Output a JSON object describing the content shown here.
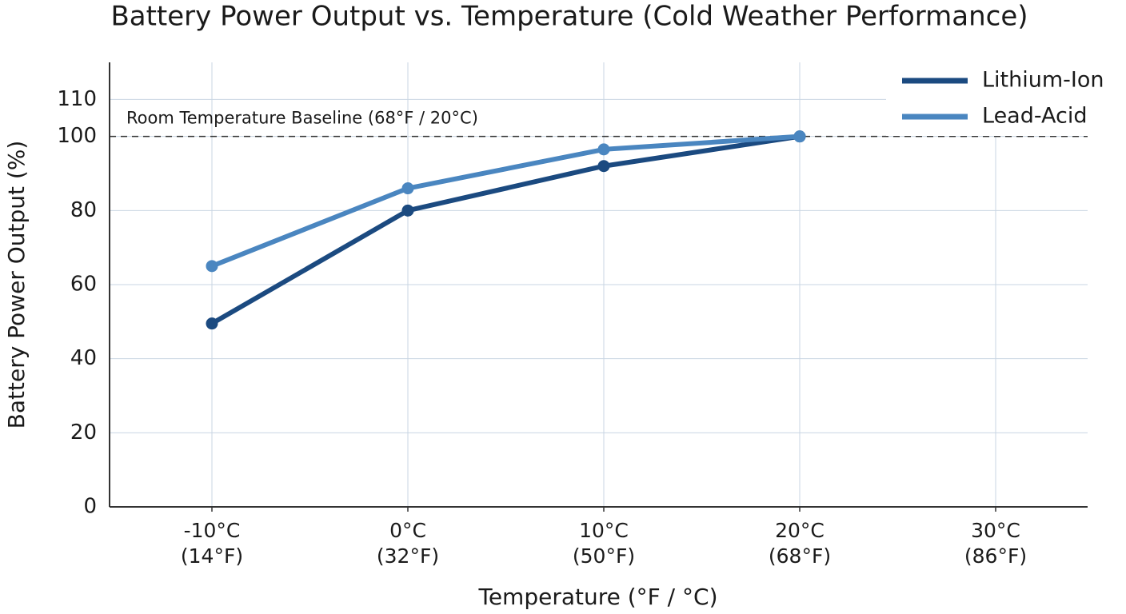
{
  "chart_data": {
    "type": "line",
    "title": "Battery Power Output vs. Temperature (Cold Weather Performance)",
    "x_label": "Temperature (°F / °C)",
    "y_label": "Battery Power Output (%)",
    "categories": [
      "-10°C\n(14°F)",
      "0°C\n(32°F)",
      "10°C\n(50°F)",
      "20°C\n(68°F)",
      "30°C\n(86°F)"
    ],
    "series": [
      {
        "name": "Lithium-Ion",
        "color": "#1b4a80",
        "values": [
          49.5,
          80,
          92,
          100,
          null
        ]
      },
      {
        "name": "Lead-Acid",
        "color": "#4a86c0",
        "values": [
          65,
          86,
          96.5,
          100,
          null
        ]
      }
    ],
    "reference_line": {
      "value": 100,
      "label": "Room Temperature Baseline (68°F / 20°C)"
    },
    "ylim": [
      0,
      120
    ],
    "yticks": [
      0,
      20,
      40,
      60,
      80,
      100,
      110
    ],
    "grid": true,
    "legend": "top-right"
  }
}
